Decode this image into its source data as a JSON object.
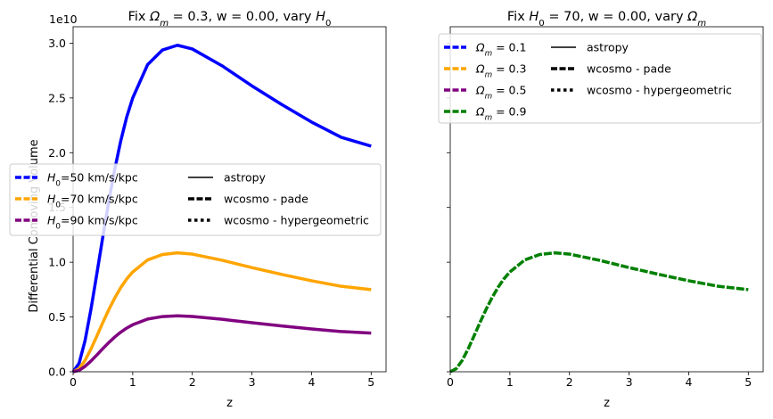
{
  "chart_data": [
    {
      "type": "line",
      "title": "Fix Ωm = 0.3, w = 0.00, vary H0",
      "xlabel": "z",
      "ylabel": "Differential Comoving Volume",
      "y_offset_label": "1e10",
      "xlim": [
        0,
        5.25
      ],
      "ylim": [
        0,
        31500000000.0
      ],
      "x_ticks": [
        0,
        1,
        2,
        3,
        4,
        5
      ],
      "x_tick_labels": [
        "0",
        "1",
        "2",
        "3",
        "4",
        "5"
      ],
      "y_ticks": [
        0,
        5000000000.0,
        10000000000.0,
        15000000000.0,
        20000000000.0,
        25000000000.0,
        30000000000.0
      ],
      "y_tick_labels": [
        "0.0",
        "0.5",
        "1.0",
        "1.5",
        "2.0",
        "2.5",
        "3.0"
      ],
      "grid": false,
      "legend_placement": "center-left",
      "x": [
        0,
        0.1,
        0.2,
        0.3,
        0.4,
        0.5,
        0.6,
        0.7,
        0.8,
        0.9,
        1.0,
        1.25,
        1.5,
        1.75,
        2.0,
        2.5,
        3.0,
        3.5,
        4.0,
        4.5,
        5.0
      ],
      "series": [
        {
          "name": "H0=50 km/s/kpc",
          "color": "#0000ff",
          "values": [
            0,
            770000000.0,
            2830000000.0,
            5720000000.0,
            9000000000.0,
            12370000000.0,
            15600000000.0,
            18530000000.0,
            21100000000.0,
            23270000000.0,
            25000000000.0,
            28040000000.0,
            29380000000.0,
            29810000000.0,
            29470000000.0,
            27930000000.0,
            26100000000.0,
            24400000000.0,
            22800000000.0,
            21400000000.0,
            20600000000.0
          ]
        },
        {
          "name": "H0=70 km/s/kpc",
          "color": "#ffa500",
          "values": [
            0,
            280000000.0,
            1030000000.0,
            2080000000.0,
            3280000000.0,
            4510000000.0,
            5680000000.0,
            6750000000.0,
            7690000000.0,
            8480000000.0,
            9110000000.0,
            10210000000.0,
            10700000000.0,
            10860000000.0,
            10740000000.0,
            10180000000.0,
            9510000000.0,
            8890000000.0,
            8310000000.0,
            7800000000.0,
            7500000000.0
          ]
        },
        {
          "name": "H0=90 km/s/kpc",
          "color": "#800080",
          "values": [
            0,
            130000000.0,
            490000000.0,
            980000000.0,
            1540000000.0,
            2120000000.0,
            2670000000.0,
            3180000000.0,
            3620000000.0,
            3990000000.0,
            4290000000.0,
            4810000000.0,
            5040000000.0,
            5110000000.0,
            5050000000.0,
            4790000000.0,
            4480000000.0,
            4180000000.0,
            3910000000.0,
            3670000000.0,
            3530000000.0
          ]
        }
      ],
      "legend_styles": [
        {
          "name": "astropy",
          "dash": "solid"
        },
        {
          "name": "wcosmo - pade",
          "dash": "dashed"
        },
        {
          "name": "wcosmo - hypergeometric",
          "dash": "dotted"
        }
      ]
    },
    {
      "type": "line",
      "title": "Fix H0 = 70, w = 0.00, vary Ωm",
      "xlabel": "z",
      "ylabel": "",
      "xlim": [
        0,
        5.25
      ],
      "ylim": [
        0,
        31500000000.0
      ],
      "x_ticks": [
        0,
        1,
        2,
        3,
        4,
        5
      ],
      "x_tick_labels": [
        "0",
        "1",
        "2",
        "3",
        "4",
        "5"
      ],
      "y_ticks": [
        0,
        5000000000.0,
        10000000000.0,
        15000000000.0,
        20000000000.0,
        25000000000.0,
        30000000000.0
      ],
      "grid": false,
      "legend_placement": "top",
      "x": [
        0,
        0.1,
        0.2,
        0.3,
        0.4,
        0.5,
        0.6,
        0.7,
        0.8,
        0.9,
        1.0,
        1.25,
        1.5,
        1.75,
        2.0,
        2.5,
        3.0,
        3.5,
        4.0,
        4.5,
        5.0
      ],
      "series": [
        {
          "name": "Ωm = 0.1",
          "color": "#0000ff",
          "legend_only": true
        },
        {
          "name": "Ωm = 0.3",
          "color": "#ffa500",
          "legend_only": true
        },
        {
          "name": "Ωm = 0.5",
          "color": "#800080",
          "legend_only": true
        },
        {
          "name": "Ωm = 0.9",
          "color": "#008000",
          "values": [
            0,
            280000000.0,
            1030000000.0,
            2080000000.0,
            3280000000.0,
            4510000000.0,
            5680000000.0,
            6750000000.0,
            7690000000.0,
            8480000000.0,
            9110000000.0,
            10210000000.0,
            10700000000.0,
            10860000000.0,
            10740000000.0,
            10180000000.0,
            9510000000.0,
            8890000000.0,
            8310000000.0,
            7800000000.0,
            7500000000.0
          ]
        }
      ],
      "legend_styles": [
        {
          "name": "astropy",
          "dash": "solid"
        },
        {
          "name": "wcosmo - pade",
          "dash": "dashed"
        },
        {
          "name": "wcosmo - hypergeometric",
          "dash": "dotted"
        }
      ]
    }
  ]
}
